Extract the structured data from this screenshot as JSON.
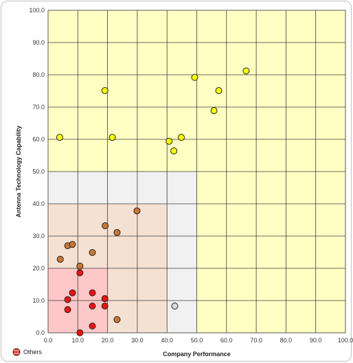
{
  "chart_data": {
    "type": "scatter",
    "title": "",
    "xlabel": "Company Performance",
    "ylabel": "Antenna Technology Capability",
    "xlim": [
      0,
      100
    ],
    "ylim": [
      0,
      100
    ],
    "x_ticks": [
      "0.0",
      "10.0",
      "20.0",
      "30.0",
      "40.0",
      "50.0",
      "60.0",
      "70.0",
      "80.0",
      "90.0",
      "100.0"
    ],
    "y_ticks": [
      "0.0",
      "10.0",
      "20.0",
      "30.0",
      "40.0",
      "50.0",
      "60.0",
      "70.0",
      "80.0",
      "90.0",
      "100.0"
    ],
    "grid": true,
    "zones": [
      {
        "x": [
          0,
          100
        ],
        "y": [
          0,
          100
        ],
        "color": "#ffffc4"
      },
      {
        "x": [
          0,
          50
        ],
        "y": [
          0,
          50
        ],
        "color": "#f1f1f1"
      },
      {
        "x": [
          0,
          40
        ],
        "y": [
          0,
          40
        ],
        "color": "#f5e1d2"
      },
      {
        "x": [
          0,
          20
        ],
        "y": [
          0,
          20
        ],
        "color": "#ffc8c8"
      }
    ],
    "series": [
      {
        "color": "#ffff00",
        "points": [
          {
            "x": 3.9,
            "y": 60.6
          },
          {
            "x": 19.1,
            "y": 75.1
          },
          {
            "x": 21.6,
            "y": 60.6
          },
          {
            "x": 40.7,
            "y": 59.4
          },
          {
            "x": 42.3,
            "y": 56.4
          },
          {
            "x": 44.8,
            "y": 60.6
          },
          {
            "x": 49.3,
            "y": 79.2
          },
          {
            "x": 55.8,
            "y": 68.9
          },
          {
            "x": 57.4,
            "y": 75.1
          },
          {
            "x": 66.6,
            "y": 81.2
          }
        ]
      },
      {
        "color": "#c87832",
        "points": [
          {
            "x": 4.1,
            "y": 22.8
          },
          {
            "x": 6.6,
            "y": 27.0
          },
          {
            "x": 8.2,
            "y": 27.4
          },
          {
            "x": 10.7,
            "y": 20.7
          },
          {
            "x": 14.9,
            "y": 24.9
          },
          {
            "x": 19.2,
            "y": 33.2
          },
          {
            "x": 23.2,
            "y": 31.1
          },
          {
            "x": 29.9,
            "y": 37.8
          },
          {
            "x": 23.2,
            "y": 4.1
          }
        ]
      },
      {
        "color": "#ee1111",
        "points": [
          {
            "x": 10.7,
            "y": 18.6
          },
          {
            "x": 8.2,
            "y": 12.4
          },
          {
            "x": 6.6,
            "y": 10.3
          },
          {
            "x": 6.6,
            "y": 7.2
          },
          {
            "x": 14.9,
            "y": 12.4
          },
          {
            "x": 14.9,
            "y": 8.3
          },
          {
            "x": 19.1,
            "y": 10.6
          },
          {
            "x": 19.1,
            "y": 8.3
          },
          {
            "x": 14.9,
            "y": 2.1
          },
          {
            "x": 10.7,
            "y": 0.0
          }
        ]
      },
      {
        "color": "#d9d9d9",
        "points": [
          {
            "x": 42.6,
            "y": 8.3
          }
        ]
      }
    ],
    "legend": {
      "position": "bottom-left",
      "entries": [
        {
          "label": "Others",
          "color": "#e03030"
        }
      ]
    }
  }
}
